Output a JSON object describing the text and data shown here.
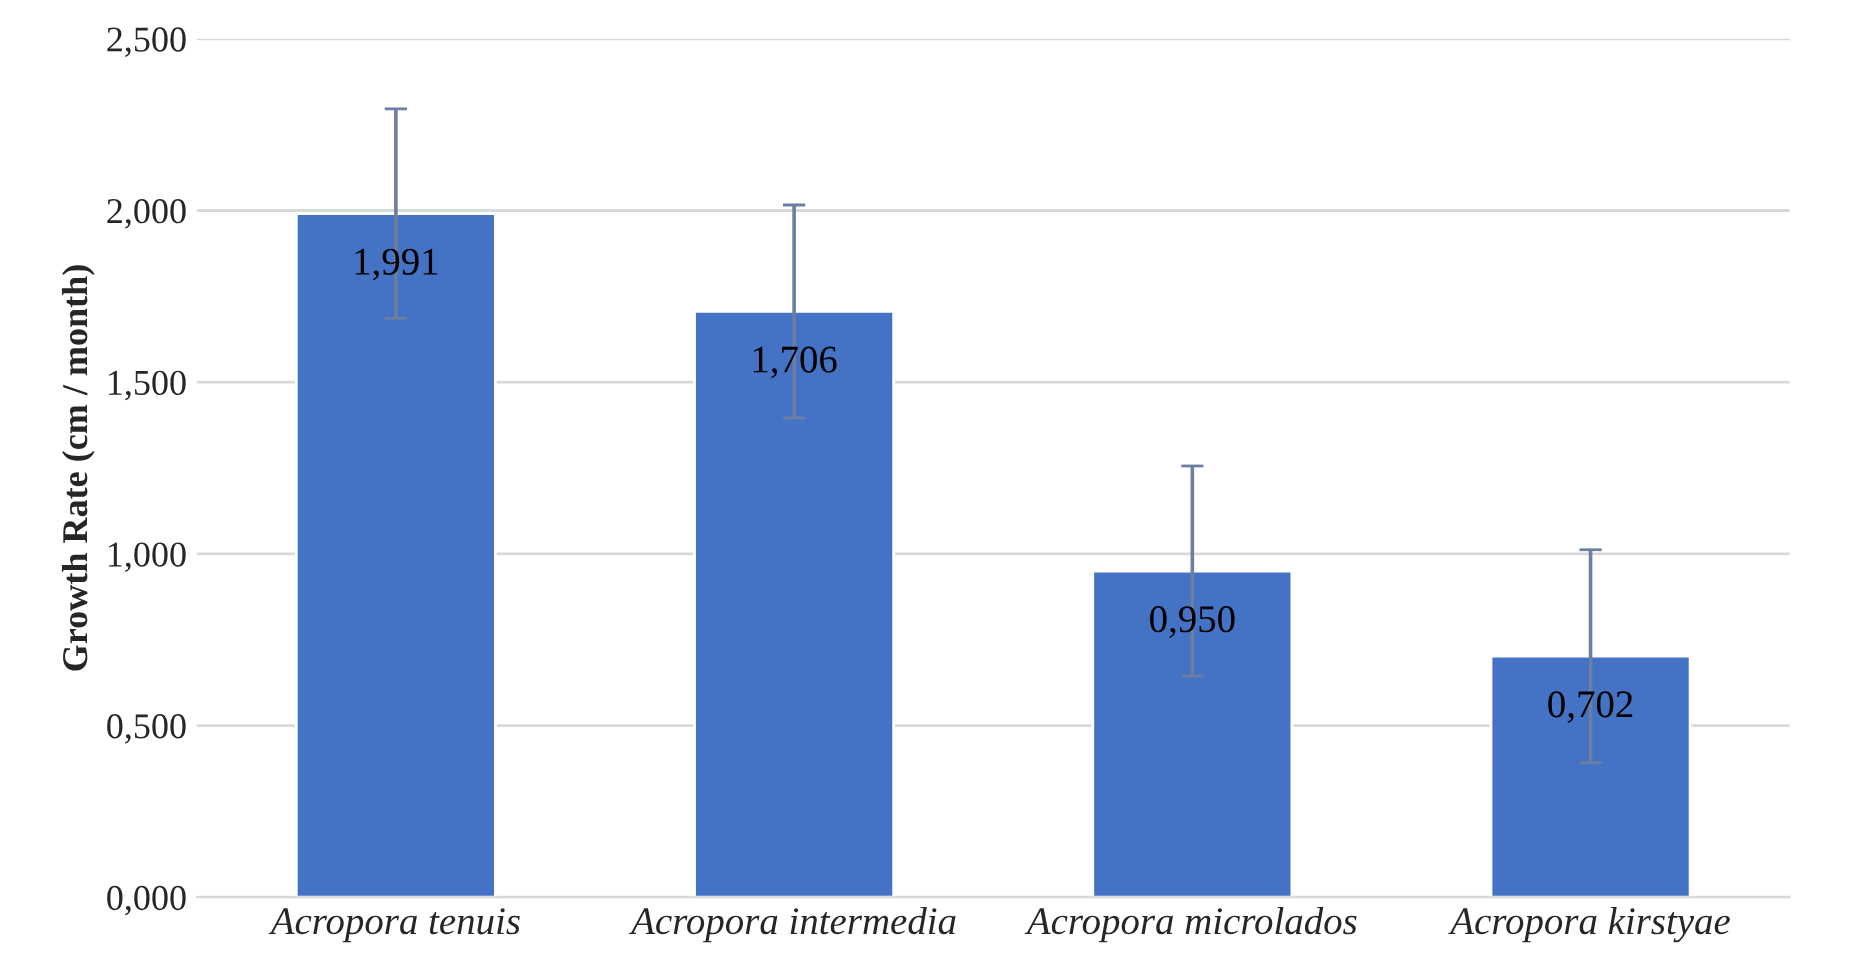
{
  "chart_data": {
    "type": "bar",
    "ylabel": "Growth Rate (cm / month)",
    "categories": [
      "Acropora tenuis",
      "Acropora intermedia",
      "Acropora microlados",
      "Acropora kirstyae"
    ],
    "values": [
      1.991,
      1.706,
      0.95,
      0.702
    ],
    "value_labels": [
      "1,991",
      "1,706",
      "0,950",
      "0,702"
    ],
    "errors": [
      0.305,
      0.31,
      0.306,
      0.31
    ],
    "color": "#4472c4",
    "ylim": [
      0,
      2.5
    ],
    "yticks": [
      {
        "value": 0,
        "label": "0,000"
      },
      {
        "value": 0.5,
        "label": "0,500"
      },
      {
        "value": 1.0,
        "label": "1,000"
      },
      {
        "value": 1.5,
        "label": "1,500"
      },
      {
        "value": 2.0,
        "label": "2,000"
      },
      {
        "value": 2.5,
        "label": "2,500"
      }
    ],
    "grid": "y",
    "legend": false
  }
}
